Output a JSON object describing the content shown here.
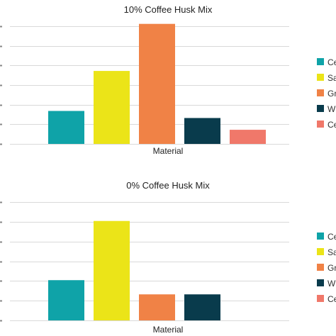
{
  "chart_data": [
    {
      "type": "bar",
      "title": "10% Coffee Husk Mix",
      "xlabel": "Material",
      "ylabel": "",
      "ylim": [
        0,
        50
      ],
      "grid": true,
      "legend_position": "right",
      "categories": [
        "Ce",
        "Sa",
        "Gr",
        "W",
        "Ce"
      ],
      "values": [
        14,
        31,
        51,
        11,
        6
      ],
      "colors": [
        "#0fa3a8",
        "#ebe418",
        "#f08246",
        "#093b4c",
        "#f0786a"
      ]
    },
    {
      "type": "bar",
      "title": "0% Coffee Husk Mix",
      "xlabel": "Material",
      "ylabel": "",
      "ylim": [
        0,
        50
      ],
      "grid": true,
      "legend_position": "right",
      "categories": [
        "Ce",
        "Sa",
        "Gr",
        "W",
        "Ce"
      ],
      "values": [
        17,
        42,
        11,
        11,
        0
      ],
      "colors": [
        "#0fa3a8",
        "#ebe418",
        "#f08246",
        "#093b4c",
        "#f0786a"
      ]
    }
  ]
}
